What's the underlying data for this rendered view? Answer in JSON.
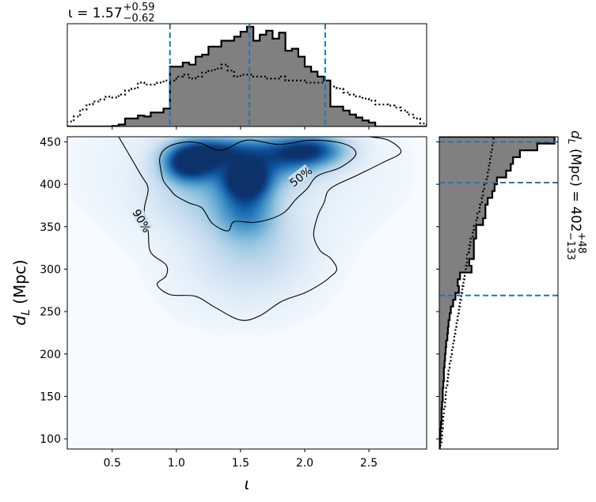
{
  "chart_data": {
    "type": "corner",
    "description_free": true,
    "top_annotation": {
      "prefix": "ι = 1.57",
      "sup": "+0.59",
      "sub": "−0.62"
    },
    "right_annotation": {
      "prefix": "d",
      "subscript": "L",
      "middle": " (Mpc) = 402",
      "sup": "+48",
      "sub": "−133"
    },
    "xlabel": "ι",
    "ylabel_main": "d",
    "ylabel_sub": "L",
    "ylabel_unit": " (Mpc)",
    "xlim": [
      0.15,
      2.95
    ],
    "ylim": [
      88,
      456
    ],
    "x_ticks": [
      0.5,
      1.0,
      1.5,
      2.0,
      2.5
    ],
    "x_tick_labels": [
      "0.5",
      "1.0",
      "1.5",
      "2.0",
      "2.5"
    ],
    "y_ticks": [
      100,
      150,
      200,
      250,
      300,
      350,
      400,
      450
    ],
    "y_tick_labels": [
      "100",
      "150",
      "200",
      "250",
      "300",
      "350",
      "400",
      "450"
    ],
    "colormap": "Blues",
    "colors": {
      "hist_fill": "#808080",
      "credible_line": "#1f77b4",
      "contour": "#000000"
    },
    "credible_interval_iota": [
      0.95,
      1.57,
      2.16
    ],
    "credible_interval_dl": [
      269,
      402,
      450
    ],
    "contours": [
      {
        "label": "50%",
        "label_x": 1.97,
        "label_y": 409,
        "points": [
          [
            1.2,
            448
          ],
          [
            1.35,
            440
          ],
          [
            1.55,
            452
          ],
          [
            1.8,
            447
          ],
          [
            2.05,
            452
          ],
          [
            2.3,
            448
          ],
          [
            2.4,
            436
          ],
          [
            2.28,
            420
          ],
          [
            2.1,
            410
          ],
          [
            2.02,
            395
          ],
          [
            1.93,
            382
          ],
          [
            1.85,
            368
          ],
          [
            1.75,
            360
          ],
          [
            1.6,
            355
          ],
          [
            1.45,
            356
          ],
          [
            1.4,
            345
          ],
          [
            1.28,
            354
          ],
          [
            1.2,
            372
          ],
          [
            1.1,
            378
          ],
          [
            1.0,
            386
          ],
          [
            0.95,
            394
          ],
          [
            0.9,
            404
          ],
          [
            0.88,
            416
          ],
          [
            0.87,
            430
          ],
          [
            0.9,
            440
          ],
          [
            0.98,
            447
          ],
          [
            1.1,
            450
          ],
          [
            1.2,
            448
          ]
        ]
      },
      {
        "label": "90%",
        "label_x": 0.73,
        "label_y": 357,
        "points": [
          [
            0.55,
            456
          ],
          [
            0.72,
            412
          ],
          [
            0.78,
            395
          ],
          [
            0.75,
            370
          ],
          [
            0.78,
            345
          ],
          [
            0.8,
            320
          ],
          [
            0.92,
            305
          ],
          [
            0.92,
            292
          ],
          [
            0.85,
            282
          ],
          [
            0.95,
            270
          ],
          [
            1.15,
            268
          ],
          [
            1.3,
            255
          ],
          [
            1.5,
            240
          ],
          [
            1.65,
            245
          ],
          [
            1.82,
            262
          ],
          [
            2.0,
            272
          ],
          [
            2.12,
            282
          ],
          [
            2.2,
            291
          ],
          [
            2.25,
            300
          ],
          [
            2.2,
            313
          ],
          [
            2.12,
            322
          ],
          [
            2.07,
            340
          ],
          [
            2.1,
            362
          ],
          [
            2.15,
            378
          ],
          [
            2.2,
            395
          ],
          [
            2.4,
            410
          ],
          [
            2.6,
            425
          ],
          [
            2.75,
            438
          ],
          [
            2.65,
            452
          ],
          [
            2.5,
            456
          ]
        ]
      }
    ],
    "density_blobs": [
      {
        "x": 1.55,
        "y": 404,
        "sx": 0.12,
        "sy": 14,
        "w": 1.0
      },
      {
        "x": 1.07,
        "y": 425,
        "sx": 0.12,
        "sy": 14,
        "w": 0.75
      },
      {
        "x": 1.2,
        "y": 430,
        "sx": 0.15,
        "sy": 16,
        "w": 0.6
      },
      {
        "x": 2.05,
        "y": 440,
        "sx": 0.18,
        "sy": 13,
        "w": 0.8
      },
      {
        "x": 1.75,
        "y": 430,
        "sx": 0.22,
        "sy": 18,
        "w": 0.55
      },
      {
        "x": 1.55,
        "y": 370,
        "sx": 0.15,
        "sy": 22,
        "w": 0.45
      },
      {
        "x": 1.38,
        "y": 440,
        "sx": 0.2,
        "sy": 10,
        "w": 0.45
      },
      {
        "x": 1.6,
        "y": 325,
        "sx": 0.28,
        "sy": 30,
        "w": 0.18
      },
      {
        "x": 1.3,
        "y": 395,
        "sx": 0.3,
        "sy": 35,
        "w": 0.25
      },
      {
        "x": 1.5,
        "y": 280,
        "sx": 0.4,
        "sy": 35,
        "w": 0.06
      },
      {
        "x": 1.5,
        "y": 420,
        "sx": 0.7,
        "sy": 60,
        "w": 0.1
      }
    ],
    "top_hist": {
      "edges": [
        0.15,
        0.2,
        0.25,
        0.3,
        0.35,
        0.4,
        0.45,
        0.5,
        0.55,
        0.6,
        0.65,
        0.7,
        0.75,
        0.8,
        0.85,
        0.9,
        0.95,
        1.0,
        1.05,
        1.1,
        1.15,
        1.2,
        1.25,
        1.3,
        1.35,
        1.4,
        1.45,
        1.5,
        1.55,
        1.6,
        1.65,
        1.7,
        1.75,
        1.8,
        1.85,
        1.9,
        1.95,
        2.0,
        2.05,
        2.1,
        2.15,
        2.2,
        2.25,
        2.3,
        2.35,
        2.4,
        2.45,
        2.5,
        2.55,
        2.6,
        2.65,
        2.7,
        2.75,
        2.8,
        2.85,
        2.9,
        2.95
      ],
      "posterior": [
        0,
        0,
        0,
        0,
        0,
        0,
        0,
        0.005,
        0.02,
        0.08,
        0.08,
        0.11,
        0.1,
        0.14,
        0.14,
        0.18,
        0.6,
        0.6,
        0.64,
        0.62,
        0.7,
        0.72,
        0.8,
        0.8,
        0.86,
        0.86,
        0.9,
        0.95,
        1.0,
        0.86,
        0.92,
        0.96,
        0.88,
        0.94,
        0.76,
        0.78,
        0.7,
        0.6,
        0.55,
        0.5,
        0.46,
        0.2,
        0.2,
        0.16,
        0.12,
        0.09,
        0.06,
        0.04,
        0,
        0,
        0,
        0,
        0,
        0,
        0,
        0
      ],
      "prior": [
        0.05,
        0.1,
        0.17,
        0.22,
        0.25,
        0.27,
        0.3,
        0.29,
        0.32,
        0.36,
        0.38,
        0.44,
        0.42,
        0.42,
        0.44,
        0.46,
        0.46,
        0.5,
        0.52,
        0.48,
        0.5,
        0.54,
        0.56,
        0.58,
        0.62,
        0.56,
        0.5,
        0.52,
        0.52,
        0.5,
        0.5,
        0.48,
        0.48,
        0.5,
        0.46,
        0.46,
        0.46,
        0.44,
        0.44,
        0.44,
        0.46,
        0.4,
        0.38,
        0.34,
        0.32,
        0.3,
        0.28,
        0.26,
        0.22,
        0.22,
        0.21,
        0.19,
        0.16,
        0.12,
        0.08,
        0.03
      ]
    },
    "right_hist": {
      "edges": [
        88,
        96,
        104,
        112,
        120,
        128,
        136,
        144,
        152,
        160,
        168,
        176,
        184,
        192,
        200,
        208,
        216,
        224,
        232,
        240,
        248,
        256,
        264,
        272,
        280,
        288,
        296,
        304,
        312,
        320,
        328,
        336,
        344,
        352,
        360,
        368,
        376,
        384,
        392,
        400,
        408,
        416,
        424,
        432,
        440,
        448,
        456
      ],
      "posterior": [
        0.005,
        0.008,
        0.01,
        0.015,
        0.02,
        0.02,
        0.025,
        0.03,
        0.03,
        0.035,
        0.04,
        0.04,
        0.045,
        0.05,
        0.055,
        0.06,
        0.07,
        0.075,
        0.08,
        0.09,
        0.1,
        0.12,
        0.14,
        0.17,
        0.16,
        0.18,
        0.28,
        0.26,
        0.3,
        0.3,
        0.3,
        0.32,
        0.32,
        0.38,
        0.4,
        0.4,
        0.42,
        0.46,
        0.48,
        0.5,
        0.58,
        0.62,
        0.64,
        0.7,
        0.85,
        1.0
      ],
      "prior": [
        0.01,
        0.02,
        0.025,
        0.03,
        0.035,
        0.04,
        0.05,
        0.055,
        0.06,
        0.07,
        0.075,
        0.08,
        0.09,
        0.1,
        0.11,
        0.12,
        0.13,
        0.14,
        0.15,
        0.16,
        0.17,
        0.18,
        0.19,
        0.2,
        0.21,
        0.22,
        0.23,
        0.24,
        0.24,
        0.26,
        0.27,
        0.29,
        0.3,
        0.32,
        0.33,
        0.35,
        0.37,
        0.38,
        0.39,
        0.41,
        0.42,
        0.43,
        0.44,
        0.45,
        0.46,
        0.47
      ]
    }
  }
}
